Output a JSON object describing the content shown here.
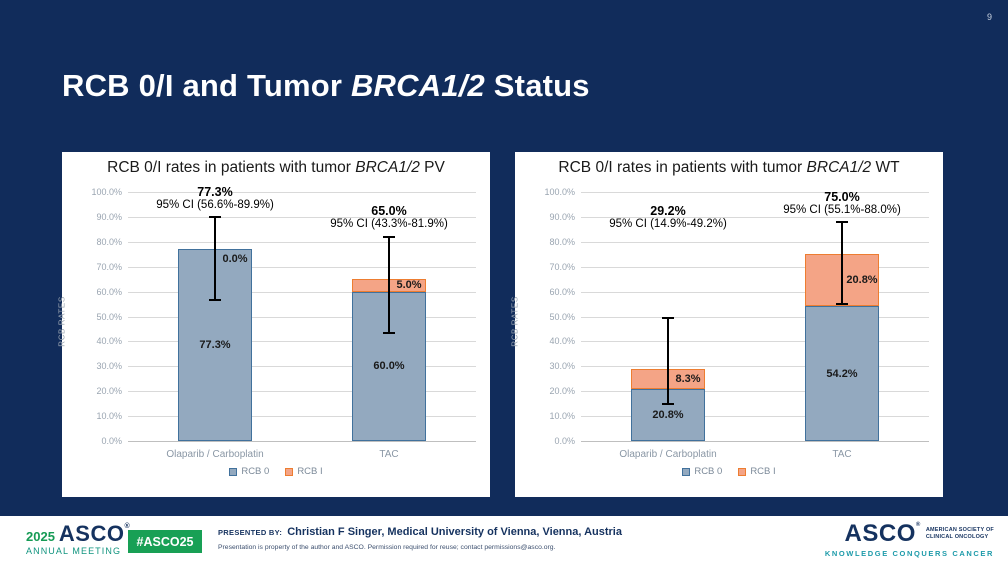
{
  "slide": {
    "page_number": "9",
    "title": {
      "pre": "RCB 0/I and Tumor ",
      "italic": "BRCA1/2",
      "post": " Status"
    }
  },
  "colors": {
    "slide_bg": "#112C5B",
    "rcb0_fill": "#93A9BF",
    "rcb0_border": "#41719C",
    "rcb1_fill": "#F4A486",
    "rcb1_border": "#ED7D31",
    "grid": "#D9D9D9",
    "axis_text": "#9AA5B1",
    "error_bar": "#000000"
  },
  "chart_data": [
    {
      "type": "bar",
      "stacked": true,
      "title": {
        "pre": "RCB 0/I rates in patients with tumor ",
        "italic": "BRCA1/2",
        "post": " PV"
      },
      "ylabel": "RCB RATES",
      "ylim": [
        0,
        100
      ],
      "grid": true,
      "ytick_labels": [
        "100.0%",
        "90.0%",
        "80.0%",
        "70.0%",
        "60.0%",
        "50.0%",
        "40.0%",
        "30.0%",
        "20.0%",
        "10.0%",
        "0.0%"
      ],
      "categories": [
        "Olaparib / Carboplatin",
        "TAC"
      ],
      "series": [
        {
          "name": "RCB 0",
          "values": [
            77.3,
            60.0
          ],
          "labels": [
            "77.3%",
            "60.0%"
          ]
        },
        {
          "name": "RCB I",
          "values": [
            0.0,
            5.0
          ],
          "labels": [
            "0.0%",
            "5.0%"
          ]
        }
      ],
      "annotations": [
        {
          "total": "77.3%",
          "ci": "95% CI (56.6%-89.9%)",
          "ci_low": 56.6,
          "ci_high": 89.9
        },
        {
          "total": "65.0%",
          "ci": "95% CI (43.3%-81.9%)",
          "ci_low": 43.3,
          "ci_high": 81.9
        }
      ],
      "legend": [
        "RCB 0",
        "RCB I"
      ],
      "legend_position": "bottom"
    },
    {
      "type": "bar",
      "stacked": true,
      "title": {
        "pre": "RCB 0/I rates in patients with tumor ",
        "italic": "BRCA1/2",
        "post": " WT"
      },
      "ylabel": "RCB RATES",
      "ylim": [
        0,
        100
      ],
      "grid": true,
      "ytick_labels": [
        "100.0%",
        "90.0%",
        "80.0%",
        "70.0%",
        "60.0%",
        "50.0%",
        "40.0%",
        "30.0%",
        "20.0%",
        "10.0%",
        "0.0%"
      ],
      "categories": [
        "Olaparib / Carboplatin",
        "TAC"
      ],
      "series": [
        {
          "name": "RCB 0",
          "values": [
            20.8,
            54.2
          ],
          "labels": [
            "20.8%",
            "54.2%"
          ]
        },
        {
          "name": "RCB I",
          "values": [
            8.3,
            20.8
          ],
          "labels": [
            "8.3%",
            "20.8%"
          ]
        }
      ],
      "annotations": [
        {
          "total": "29.2%",
          "ci": "95% CI (14.9%-49.2%)",
          "ci_low": 14.9,
          "ci_high": 49.2
        },
        {
          "total": "75.0%",
          "ci": "95% CI (55.1%-88.0%)",
          "ci_low": 55.1,
          "ci_high": 88.0
        }
      ],
      "legend": [
        "RCB 0",
        "RCB I"
      ],
      "legend_position": "bottom"
    }
  ],
  "footer": {
    "meeting_logo": {
      "year": "2025",
      "name": "ASCO",
      "reg": "®",
      "sub": "ANNUAL MEETING"
    },
    "hashtag": "#ASCO25",
    "presented_by_label": "PRESENTED BY:",
    "presenter": "Christian F Singer, Medical University of Vienna, Vienna, Austria",
    "fine_print": "Presentation is property of the author and ASCO. Permission required for reuse; contact permissions@asco.org.",
    "asco_logo": {
      "name": "ASCO",
      "reg": "®",
      "society_line1": "AMERICAN SOCIETY OF",
      "society_line2": "CLINICAL ONCOLOGY",
      "tagline": "KNOWLEDGE CONQUERS CANCER"
    }
  }
}
